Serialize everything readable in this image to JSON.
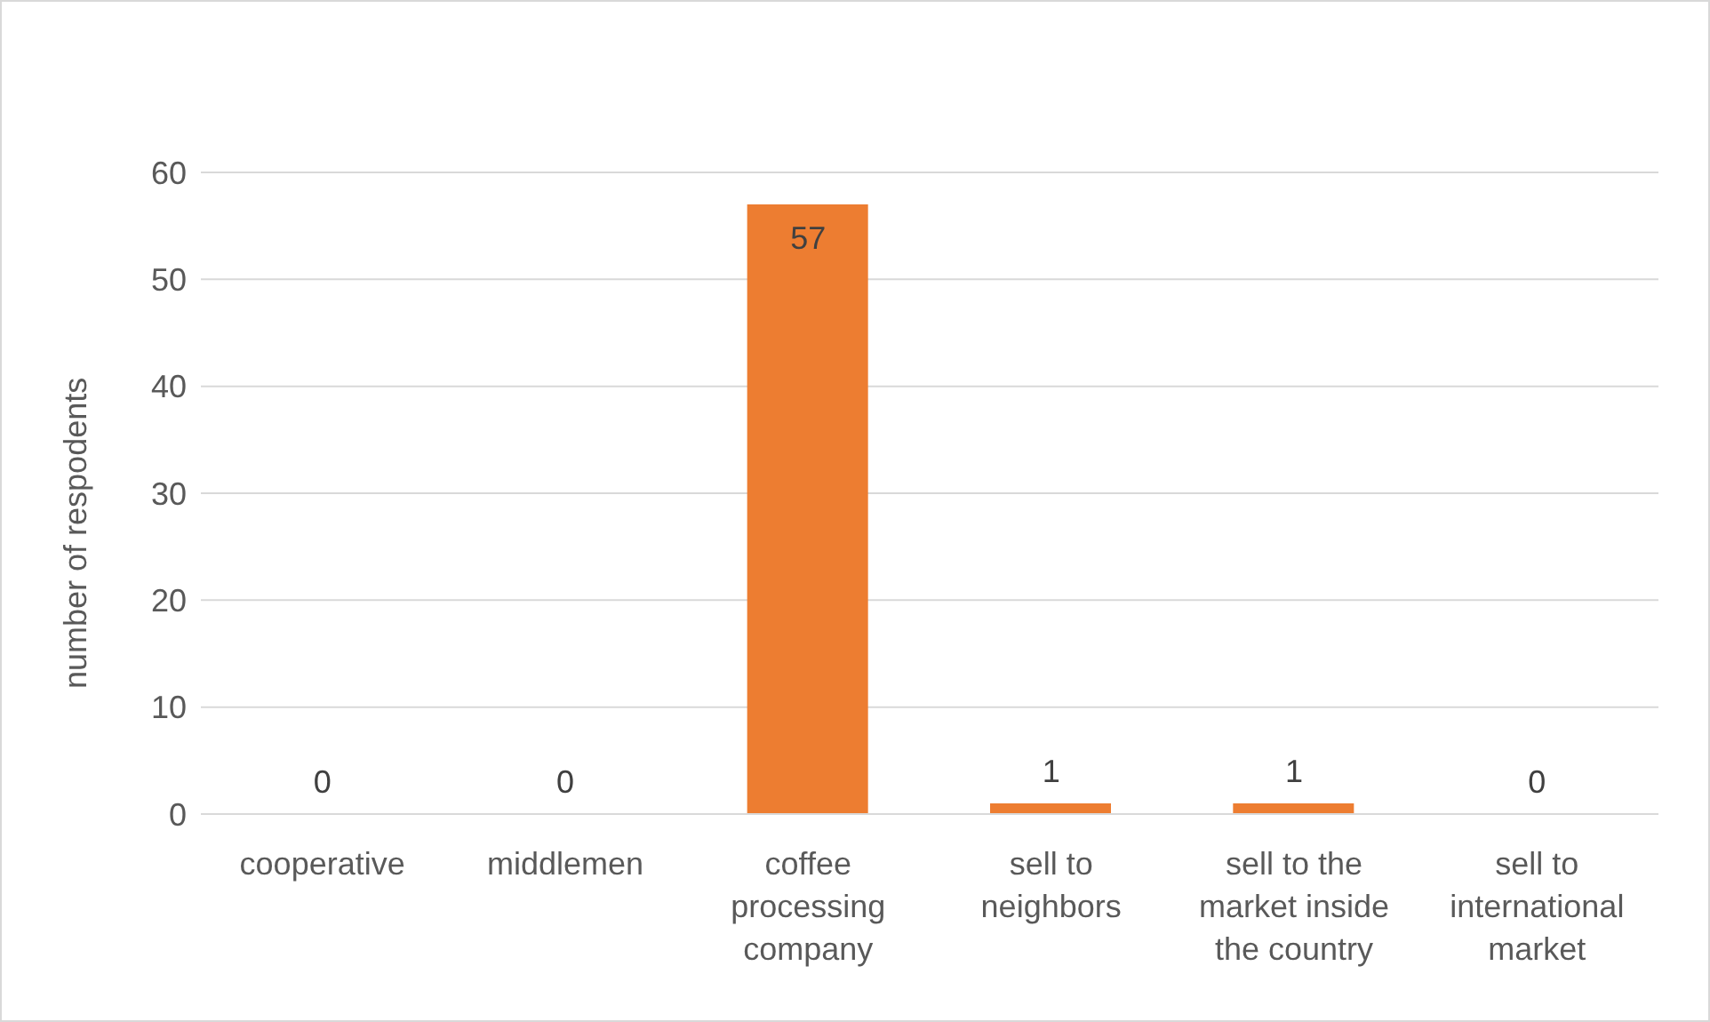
{
  "chart_data": {
    "type": "bar",
    "ylabel": "number of respodents",
    "categories": [
      "cooperative",
      "middlemen",
      "coffee processing company",
      "sell to neighbors",
      "sell to the market inside the country",
      "sell to international market"
    ],
    "values": [
      0,
      0,
      57,
      1,
      1,
      0
    ],
    "color": "#ed7d31",
    "ylim": [
      0,
      60
    ],
    "yticks": [
      0,
      10,
      20,
      30,
      40,
      50,
      60
    ],
    "grid": "y",
    "data_labels": true
  }
}
